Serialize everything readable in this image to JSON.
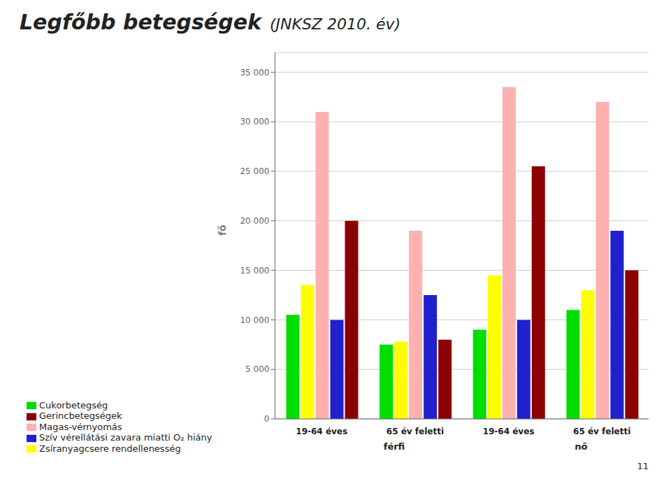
{
  "chart_data": {
    "type": "bar",
    "title": "Legfőbb betegségek",
    "subtitle": "(JNKSZ 2010. év)",
    "ylabel": "fő",
    "categories": [
      "19-64 éves",
      "65 év feletti",
      "19-64 éves",
      "65 év feletti"
    ],
    "series": [
      {
        "name": "Cukorbetegség",
        "color": "#00dd00",
        "values": [
          10500,
          7500,
          9000,
          11000
        ]
      },
      {
        "name": "Zsíranyagcsere rendellenesség",
        "color": "#ffff00",
        "values": [
          13500,
          7800,
          14500,
          13000
        ]
      },
      {
        "name": "Magas-vérnyomás",
        "color": "#ffb0b0",
        "values": [
          31000,
          19000,
          33500,
          32000
        ]
      },
      {
        "name": "Szív vérellátási zavara miatti O₂ hiány",
        "color": "#2020cc",
        "values": [
          10000,
          12500,
          10000,
          19000
        ]
      },
      {
        "name": "Gerincbetegségek",
        "color": "#8b0000",
        "values": [
          20000,
          8000,
          25500,
          15000
        ]
      }
    ],
    "ylim": [
      0,
      37000
    ],
    "yticks": [
      0,
      {
        "value": 5000,
        "label": "5 000"
      },
      {
        "value": 10000,
        "label": "10 000"
      },
      {
        "value": 15000,
        "label": "15 000"
      },
      {
        "value": 20000,
        "label": "20 000"
      },
      {
        "value": 25000,
        "label": "25 000"
      },
      {
        "value": 30000,
        "label": "30 000"
      },
      {
        "value": 35000,
        "label": "35 000"
      }
    ],
    "grid": true,
    "legend": "bottom",
    "annotations": [
      "férfi",
      "nő",
      "11"
    ]
  }
}
